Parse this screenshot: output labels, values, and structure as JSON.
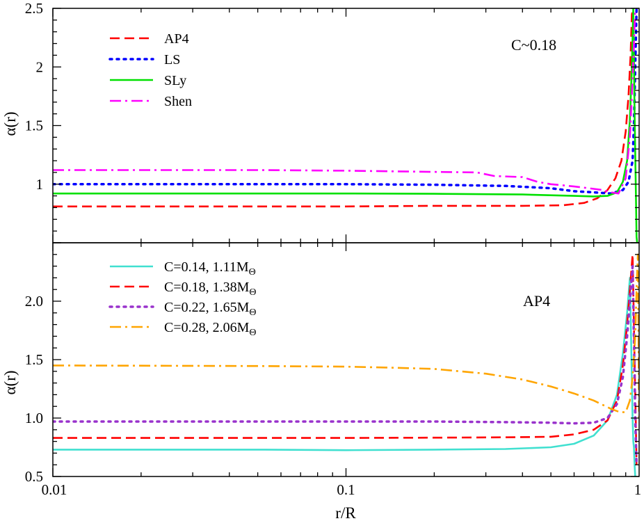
{
  "chart_data": [
    {
      "panel": "top",
      "type": "line",
      "annotation": "C~0.18",
      "xlabel": "",
      "ylabel": "α(r)",
      "xscale": "log",
      "xlim": [
        0.01,
        1
      ],
      "ylim": [
        0.5,
        2.5
      ],
      "yticks": [
        1,
        1.5,
        2,
        2.5
      ],
      "ytick_labels": [
        "1",
        "1.5",
        "2",
        "2.5"
      ],
      "legend_position": "top-left",
      "series": [
        {
          "name": "AP4",
          "label": "AP4",
          "color": "#ff0000",
          "dash": "dashed",
          "x": [
            0.01,
            0.05,
            0.1,
            0.2,
            0.4,
            0.55,
            0.65,
            0.72,
            0.78,
            0.83,
            0.87,
            0.9,
            0.92,
            0.935,
            0.945,
            0.955
          ],
          "y": [
            0.81,
            0.81,
            0.81,
            0.815,
            0.815,
            0.82,
            0.84,
            0.88,
            0.95,
            1.05,
            1.2,
            1.45,
            1.75,
            2.1,
            2.45,
            2.5
          ]
        },
        {
          "name": "LS",
          "label": "LS",
          "color": "#0000ff",
          "dash": "dotted",
          "x": [
            0.01,
            0.05,
            0.1,
            0.2,
            0.35,
            0.5,
            0.6,
            0.7,
            0.8,
            0.88,
            0.92,
            0.95,
            0.96,
            0.97,
            0.98
          ],
          "y": [
            1.0,
            1.0,
            1.0,
            0.995,
            0.985,
            0.965,
            0.94,
            0.93,
            0.92,
            0.95,
            1.02,
            1.2,
            1.5,
            2.0,
            2.5
          ]
        },
        {
          "name": "SLy",
          "label": "SLy",
          "color": "#00e000",
          "dash": "solid",
          "x": [
            0.01,
            0.05,
            0.1,
            0.2,
            0.4,
            0.6,
            0.7,
            0.78,
            0.84,
            0.88,
            0.91,
            0.93,
            0.945,
            0.955,
            0.965,
            0.975,
            0.98,
            0.985
          ],
          "y": [
            0.92,
            0.92,
            0.92,
            0.918,
            0.912,
            0.9,
            0.895,
            0.9,
            0.93,
            1.02,
            1.2,
            1.55,
            2.0,
            2.5,
            1.6,
            0.9,
            0.55,
            0.5
          ]
        },
        {
          "name": "Shen",
          "label": "Shen",
          "color": "#ff00ff",
          "dash": "dashdot",
          "x": [
            0.01,
            0.05,
            0.1,
            0.2,
            0.28,
            0.32,
            0.4,
            0.45,
            0.5,
            0.55,
            0.6,
            0.65,
            0.7,
            0.75,
            0.8,
            0.85,
            0.9,
            0.93,
            0.95,
            0.97
          ],
          "y": [
            1.12,
            1.12,
            1.115,
            1.105,
            1.1,
            1.07,
            1.06,
            1.02,
            1.0,
            0.99,
            0.98,
            0.97,
            0.96,
            0.95,
            0.93,
            0.92,
            1.05,
            1.4,
            1.9,
            2.5
          ]
        }
      ]
    },
    {
      "panel": "bottom",
      "type": "line",
      "annotation": "AP4",
      "xlabel": "r/R",
      "ylabel": "α(r)",
      "xscale": "log",
      "xlim": [
        0.01,
        1
      ],
      "ylim": [
        0.5,
        2.5
      ],
      "xticks": [
        0.01,
        0.1,
        1
      ],
      "xtick_labels": [
        "0.01",
        "0.1",
        "1"
      ],
      "yticks": [
        0.5,
        1.0,
        1.5,
        2.0
      ],
      "ytick_labels": [
        "0.5",
        "1.0",
        "1.5",
        "2.0"
      ],
      "legend_position": "top-left",
      "series": [
        {
          "name": "C=0.14, 1.11MΘ",
          "label": "C=0.14, 1.11M",
          "sub": "Θ",
          "color": "#40e0d0",
          "dash": "solid",
          "x": [
            0.01,
            0.05,
            0.1,
            0.2,
            0.35,
            0.5,
            0.6,
            0.7,
            0.78,
            0.84,
            0.88,
            0.91,
            0.93,
            0.94,
            0.95,
            0.955,
            0.96,
            0.965,
            0.97
          ],
          "y": [
            0.73,
            0.73,
            0.725,
            0.73,
            0.735,
            0.75,
            0.78,
            0.85,
            0.98,
            1.2,
            1.55,
            1.9,
            2.2,
            1.6,
            1.0,
            0.8,
            0.75,
            0.6,
            0.5
          ]
        },
        {
          "name": "C=0.18, 1.38MΘ",
          "label": "C=0.18, 1.38M",
          "sub": "Θ",
          "color": "#ff0000",
          "dash": "dashed",
          "x": [
            0.01,
            0.05,
            0.1,
            0.2,
            0.35,
            0.5,
            0.6,
            0.7,
            0.78,
            0.84,
            0.88,
            0.91,
            0.93,
            0.95,
            0.96,
            0.97,
            0.975,
            0.98
          ],
          "y": [
            0.83,
            0.83,
            0.83,
            0.832,
            0.835,
            0.84,
            0.86,
            0.9,
            0.98,
            1.15,
            1.45,
            1.8,
            2.1,
            2.4,
            1.8,
            1.2,
            0.9,
            0.6
          ]
        },
        {
          "name": "C=0.22, 1.65MΘ",
          "label": "C=0.22, 1.65M",
          "sub": "Θ",
          "color": "#9932cc",
          "dash": "dotted",
          "x": [
            0.01,
            0.05,
            0.1,
            0.2,
            0.35,
            0.5,
            0.6,
            0.7,
            0.78,
            0.84,
            0.88,
            0.91,
            0.93,
            0.95,
            0.96,
            0.97,
            0.98
          ],
          "y": [
            0.97,
            0.97,
            0.97,
            0.97,
            0.965,
            0.96,
            0.955,
            0.96,
            1.0,
            1.12,
            1.35,
            1.7,
            2.0,
            2.3,
            1.7,
            1.0,
            0.6
          ]
        },
        {
          "name": "C=0.28, 2.06MΘ",
          "label": "C=0.28, 2.06M",
          "sub": "Θ",
          "color": "#ffa500",
          "dash": "dashdot",
          "x": [
            0.01,
            0.05,
            0.1,
            0.15,
            0.2,
            0.3,
            0.4,
            0.5,
            0.6,
            0.7,
            0.8,
            0.86,
            0.9,
            0.93,
            0.95,
            0.97,
            0.98,
            0.99,
            1.0
          ],
          "y": [
            1.45,
            1.445,
            1.44,
            1.43,
            1.42,
            1.38,
            1.33,
            1.27,
            1.21,
            1.15,
            1.08,
            1.05,
            1.05,
            1.15,
            1.35,
            1.7,
            2.1,
            2.4,
            1.0
          ]
        }
      ]
    }
  ]
}
